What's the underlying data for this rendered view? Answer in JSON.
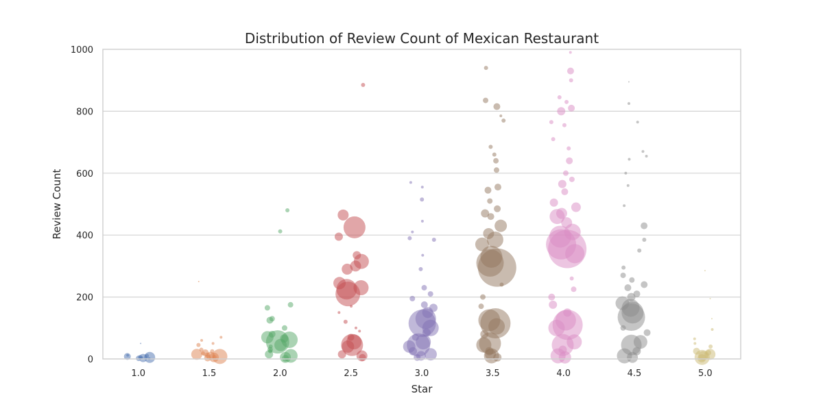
{
  "chart_data": {
    "type": "scatter",
    "title": "Distribution of Review Count of Mexican Restaurant",
    "xlabel": "Star",
    "ylabel": "Review Count",
    "ylim": [
      0,
      1000
    ],
    "yticks": [
      0,
      200,
      400,
      600,
      800,
      1000
    ],
    "categories": [
      "1.0",
      "1.5",
      "2.0",
      "2.5",
      "3.0",
      "3.5",
      "4.0",
      "4.5",
      "5.0"
    ],
    "grid": "horizontal",
    "series": [
      {
        "category": "1.0",
        "color": "#4c72b0",
        "points": [
          {
            "y": 5,
            "size": 8
          },
          {
            "y": 3,
            "size": 6
          },
          {
            "y": 8,
            "size": 5
          },
          {
            "y": 2,
            "size": 4
          },
          {
            "y": 6,
            "size": 3
          },
          {
            "y": 10,
            "size": 3
          },
          {
            "y": 4,
            "size": 2
          },
          {
            "y": 1,
            "size": 2
          },
          {
            "y": 12,
            "size": 2
          },
          {
            "y": 50,
            "size": 1
          }
        ]
      },
      {
        "category": "1.5",
        "color": "#dd8452",
        "points": [
          {
            "y": 8,
            "size": 11
          },
          {
            "y": 15,
            "size": 8
          },
          {
            "y": 5,
            "size": 7
          },
          {
            "y": 20,
            "size": 5
          },
          {
            "y": 10,
            "size": 6
          },
          {
            "y": 3,
            "size": 5
          },
          {
            "y": 12,
            "size": 4
          },
          {
            "y": 25,
            "size": 3
          },
          {
            "y": 30,
            "size": 3
          },
          {
            "y": 45,
            "size": 3
          },
          {
            "y": 50,
            "size": 2
          },
          {
            "y": 60,
            "size": 2
          },
          {
            "y": 70,
            "size": 2
          },
          {
            "y": 18,
            "size": 3
          },
          {
            "y": 6,
            "size": 3
          },
          {
            "y": 250,
            "size": 1
          }
        ]
      },
      {
        "category": "2.0",
        "color": "#55a868",
        "points": [
          {
            "y": 55,
            "size": 17
          },
          {
            "y": 62,
            "size": 12
          },
          {
            "y": 70,
            "size": 9
          },
          {
            "y": 45,
            "size": 9
          },
          {
            "y": 10,
            "size": 10
          },
          {
            "y": 5,
            "size": 8
          },
          {
            "y": 15,
            "size": 6
          },
          {
            "y": 125,
            "size": 5
          },
          {
            "y": 130,
            "size": 4
          },
          {
            "y": 100,
            "size": 4
          },
          {
            "y": 165,
            "size": 4
          },
          {
            "y": 175,
            "size": 4
          },
          {
            "y": 80,
            "size": 5
          },
          {
            "y": 30,
            "size": 4
          },
          {
            "y": 25,
            "size": 3
          },
          {
            "y": 480,
            "size": 3
          },
          {
            "y": 412,
            "size": 3
          },
          {
            "y": 40,
            "size": 3
          },
          {
            "y": 2,
            "size": 5
          },
          {
            "y": 66,
            "size": 6
          }
        ]
      },
      {
        "category": "2.5",
        "color": "#c44e52",
        "points": [
          {
            "y": 210,
            "size": 18
          },
          {
            "y": 225,
            "size": 15
          },
          {
            "y": 230,
            "size": 11
          },
          {
            "y": 245,
            "size": 9
          },
          {
            "y": 425,
            "size": 16
          },
          {
            "y": 465,
            "size": 8
          },
          {
            "y": 395,
            "size": 6
          },
          {
            "y": 315,
            "size": 11
          },
          {
            "y": 300,
            "size": 8
          },
          {
            "y": 290,
            "size": 8
          },
          {
            "y": 335,
            "size": 6
          },
          {
            "y": 45,
            "size": 16
          },
          {
            "y": 55,
            "size": 11
          },
          {
            "y": 40,
            "size": 9
          },
          {
            "y": 10,
            "size": 8
          },
          {
            "y": 15,
            "size": 6
          },
          {
            "y": 70,
            "size": 5
          },
          {
            "y": 120,
            "size": 3
          },
          {
            "y": 150,
            "size": 2
          },
          {
            "y": 170,
            "size": 2
          },
          {
            "y": 885,
            "size": 3
          },
          {
            "y": 5,
            "size": 5
          },
          {
            "y": 90,
            "size": 2
          },
          {
            "y": 100,
            "size": 2
          }
        ]
      },
      {
        "category": "3.0",
        "color": "#8172b3",
        "points": [
          {
            "y": 115,
            "size": 20
          },
          {
            "y": 130,
            "size": 15
          },
          {
            "y": 100,
            "size": 12
          },
          {
            "y": 45,
            "size": 17
          },
          {
            "y": 55,
            "size": 11
          },
          {
            "y": 40,
            "size": 9
          },
          {
            "y": 15,
            "size": 9
          },
          {
            "y": 10,
            "size": 7
          },
          {
            "y": 150,
            "size": 8
          },
          {
            "y": 165,
            "size": 6
          },
          {
            "y": 195,
            "size": 4
          },
          {
            "y": 210,
            "size": 4
          },
          {
            "y": 230,
            "size": 4
          },
          {
            "y": 175,
            "size": 5
          },
          {
            "y": 85,
            "size": 6
          },
          {
            "y": 70,
            "size": 5
          },
          {
            "y": 25,
            "size": 6
          },
          {
            "y": 5,
            "size": 5
          },
          {
            "y": 290,
            "size": 3
          },
          {
            "y": 385,
            "size": 3
          },
          {
            "y": 390,
            "size": 3
          },
          {
            "y": 410,
            "size": 2
          },
          {
            "y": 515,
            "size": 3
          },
          {
            "y": 555,
            "size": 2
          },
          {
            "y": 570,
            "size": 2
          },
          {
            "y": 445,
            "size": 2
          },
          {
            "y": 335,
            "size": 2
          }
        ]
      },
      {
        "category": "3.5",
        "color": "#937860",
        "points": [
          {
            "y": 295,
            "size": 28
          },
          {
            "y": 310,
            "size": 20
          },
          {
            "y": 330,
            "size": 16
          },
          {
            "y": 385,
            "size": 12
          },
          {
            "y": 370,
            "size": 10
          },
          {
            "y": 405,
            "size": 8
          },
          {
            "y": 430,
            "size": 9
          },
          {
            "y": 115,
            "size": 22
          },
          {
            "y": 125,
            "size": 16
          },
          {
            "y": 105,
            "size": 12
          },
          {
            "y": 50,
            "size": 16
          },
          {
            "y": 45,
            "size": 11
          },
          {
            "y": 10,
            "size": 11
          },
          {
            "y": 15,
            "size": 8
          },
          {
            "y": 5,
            "size": 6
          },
          {
            "y": 545,
            "size": 5
          },
          {
            "y": 555,
            "size": 5
          },
          {
            "y": 485,
            "size": 5
          },
          {
            "y": 460,
            "size": 5
          },
          {
            "y": 470,
            "size": 6
          },
          {
            "y": 510,
            "size": 4
          },
          {
            "y": 610,
            "size": 4
          },
          {
            "y": 640,
            "size": 4
          },
          {
            "y": 660,
            "size": 3
          },
          {
            "y": 685,
            "size": 3
          },
          {
            "y": 770,
            "size": 3
          },
          {
            "y": 785,
            "size": 2
          },
          {
            "y": 815,
            "size": 5
          },
          {
            "y": 835,
            "size": 4
          },
          {
            "y": 940,
            "size": 3
          },
          {
            "y": 200,
            "size": 4
          },
          {
            "y": 240,
            "size": 3
          },
          {
            "y": 170,
            "size": 4
          },
          {
            "y": 80,
            "size": 6
          },
          {
            "y": 25,
            "size": 6
          }
        ]
      },
      {
        "category": "4.0",
        "color": "#da8bc3",
        "points": [
          {
            "y": 355,
            "size": 28
          },
          {
            "y": 370,
            "size": 22
          },
          {
            "y": 395,
            "size": 16
          },
          {
            "y": 340,
            "size": 14
          },
          {
            "y": 410,
            "size": 12
          },
          {
            "y": 460,
            "size": 11
          },
          {
            "y": 470,
            "size": 8
          },
          {
            "y": 440,
            "size": 8
          },
          {
            "y": 490,
            "size": 7
          },
          {
            "y": 505,
            "size": 6
          },
          {
            "y": 110,
            "size": 22
          },
          {
            "y": 125,
            "size": 15
          },
          {
            "y": 100,
            "size": 12
          },
          {
            "y": 45,
            "size": 16
          },
          {
            "y": 55,
            "size": 11
          },
          {
            "y": 10,
            "size": 11
          },
          {
            "y": 5,
            "size": 9
          },
          {
            "y": 150,
            "size": 6
          },
          {
            "y": 175,
            "size": 6
          },
          {
            "y": 200,
            "size": 5
          },
          {
            "y": 225,
            "size": 4
          },
          {
            "y": 540,
            "size": 5
          },
          {
            "y": 565,
            "size": 6
          },
          {
            "y": 580,
            "size": 4
          },
          {
            "y": 600,
            "size": 4
          },
          {
            "y": 640,
            "size": 5
          },
          {
            "y": 680,
            "size": 3
          },
          {
            "y": 710,
            "size": 3
          },
          {
            "y": 755,
            "size": 3
          },
          {
            "y": 765,
            "size": 3
          },
          {
            "y": 800,
            "size": 6
          },
          {
            "y": 810,
            "size": 5
          },
          {
            "y": 830,
            "size": 3
          },
          {
            "y": 845,
            "size": 3
          },
          {
            "y": 900,
            "size": 3
          },
          {
            "y": 930,
            "size": 5
          },
          {
            "y": 990,
            "size": 2
          },
          {
            "y": 260,
            "size": 3
          },
          {
            "y": 30,
            "size": 6
          }
        ]
      },
      {
        "category": "4.5",
        "color": "#8c8c8c",
        "points": [
          {
            "y": 135,
            "size": 20
          },
          {
            "y": 150,
            "size": 16
          },
          {
            "y": 165,
            "size": 13
          },
          {
            "y": 180,
            "size": 10
          },
          {
            "y": 45,
            "size": 15
          },
          {
            "y": 55,
            "size": 10
          },
          {
            "y": 10,
            "size": 11
          },
          {
            "y": 5,
            "size": 8
          },
          {
            "y": 200,
            "size": 6
          },
          {
            "y": 210,
            "size": 5
          },
          {
            "y": 230,
            "size": 5
          },
          {
            "y": 240,
            "size": 5
          },
          {
            "y": 255,
            "size": 4
          },
          {
            "y": 270,
            "size": 4
          },
          {
            "y": 295,
            "size": 3
          },
          {
            "y": 350,
            "size": 3
          },
          {
            "y": 385,
            "size": 3
          },
          {
            "y": 430,
            "size": 5
          },
          {
            "y": 495,
            "size": 2
          },
          {
            "y": 560,
            "size": 2
          },
          {
            "y": 600,
            "size": 2
          },
          {
            "y": 645,
            "size": 2
          },
          {
            "y": 655,
            "size": 2
          },
          {
            "y": 670,
            "size": 2
          },
          {
            "y": 765,
            "size": 2
          },
          {
            "y": 825,
            "size": 2
          },
          {
            "y": 895,
            "size": 1
          },
          {
            "y": 85,
            "size": 5
          },
          {
            "y": 100,
            "size": 4
          },
          {
            "y": 25,
            "size": 6
          }
        ]
      },
      {
        "category": "5.0",
        "color": "#ccb974",
        "points": [
          {
            "y": 5,
            "size": 11
          },
          {
            "y": 15,
            "size": 8
          },
          {
            "y": 10,
            "size": 7
          },
          {
            "y": 25,
            "size": 5
          },
          {
            "y": 2,
            "size": 6
          },
          {
            "y": 20,
            "size": 4
          },
          {
            "y": 40,
            "size": 3
          },
          {
            "y": 50,
            "size": 2
          },
          {
            "y": 65,
            "size": 2
          },
          {
            "y": 95,
            "size": 2
          },
          {
            "y": 130,
            "size": 1
          },
          {
            "y": 195,
            "size": 1
          },
          {
            "y": 285,
            "size": 1
          }
        ]
      }
    ]
  }
}
